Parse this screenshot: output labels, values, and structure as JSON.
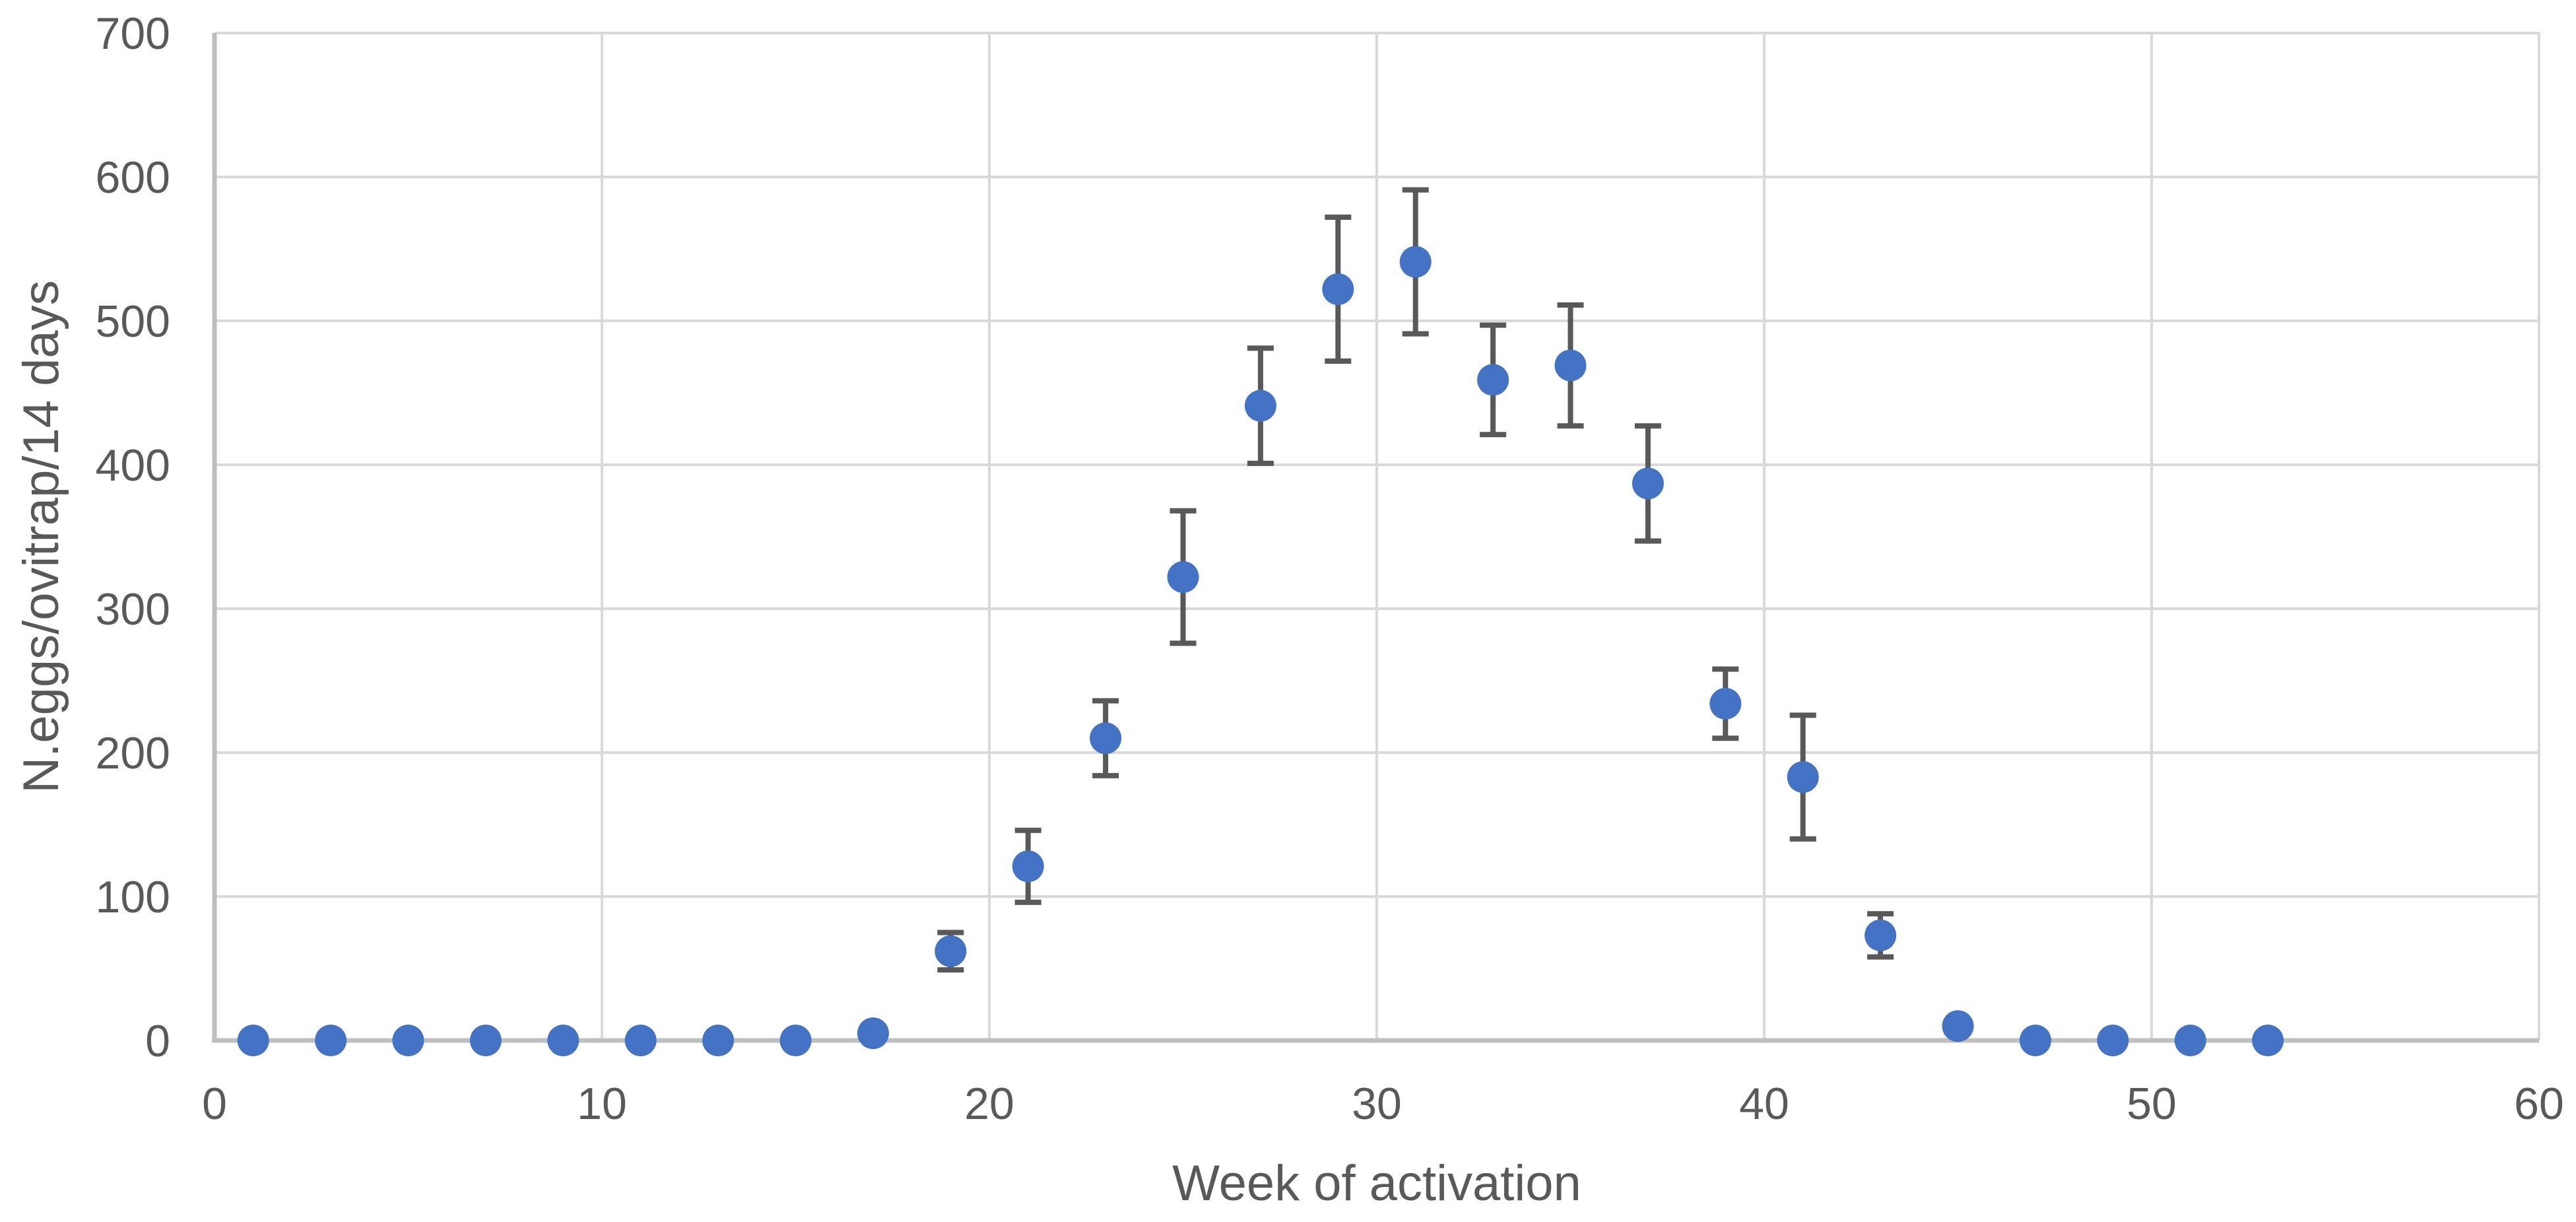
{
  "chart_data": {
    "type": "scatter",
    "title": "",
    "xlabel": "Week of activation",
    "ylabel": "N.eggs/ovitrap/14 days",
    "xlim": [
      0,
      60
    ],
    "ylim": [
      0,
      700
    ],
    "x_ticks": [
      0,
      10,
      20,
      30,
      40,
      50,
      60
    ],
    "y_ticks": [
      0,
      100,
      200,
      300,
      400,
      500,
      600,
      700
    ],
    "grid": true,
    "legend": "none",
    "marker_color": "#4472C4",
    "error_bar_color": "#595959",
    "gridline_color": "#D9D9D9",
    "axis_line_color": "#BFBFBF",
    "tick_label_color": "#595959",
    "series": [
      {
        "name": "N.eggs/ovitrap/14 days",
        "marker": "circle",
        "points": [
          {
            "x": 1,
            "y": 0,
            "err": 0
          },
          {
            "x": 3,
            "y": 0,
            "err": 0
          },
          {
            "x": 5,
            "y": 0,
            "err": 0
          },
          {
            "x": 7,
            "y": 0,
            "err": 0
          },
          {
            "x": 9,
            "y": 0,
            "err": 0
          },
          {
            "x": 11,
            "y": 0,
            "err": 0
          },
          {
            "x": 13,
            "y": 0,
            "err": 0
          },
          {
            "x": 15,
            "y": 0,
            "err": 0
          },
          {
            "x": 17,
            "y": 5,
            "err": 0
          },
          {
            "x": 19,
            "y": 62,
            "err": 13
          },
          {
            "x": 21,
            "y": 121,
            "err": 25
          },
          {
            "x": 23,
            "y": 210,
            "err": 26
          },
          {
            "x": 25,
            "y": 322,
            "err": 46
          },
          {
            "x": 27,
            "y": 441,
            "err": 40
          },
          {
            "x": 29,
            "y": 522,
            "err": 50
          },
          {
            "x": 31,
            "y": 541,
            "err": 50
          },
          {
            "x": 33,
            "y": 459,
            "err": 38
          },
          {
            "x": 35,
            "y": 469,
            "err": 42
          },
          {
            "x": 37,
            "y": 387,
            "err": 40
          },
          {
            "x": 39,
            "y": 234,
            "err": 24
          },
          {
            "x": 41,
            "y": 183,
            "err": 43
          },
          {
            "x": 43,
            "y": 73,
            "err": 15
          },
          {
            "x": 45,
            "y": 10,
            "err": 0
          },
          {
            "x": 47,
            "y": 0,
            "err": 0
          },
          {
            "x": 49,
            "y": 0,
            "err": 0
          },
          {
            "x": 51,
            "y": 0,
            "err": 0
          },
          {
            "x": 53,
            "y": 0,
            "err": 0
          }
        ]
      }
    ]
  }
}
